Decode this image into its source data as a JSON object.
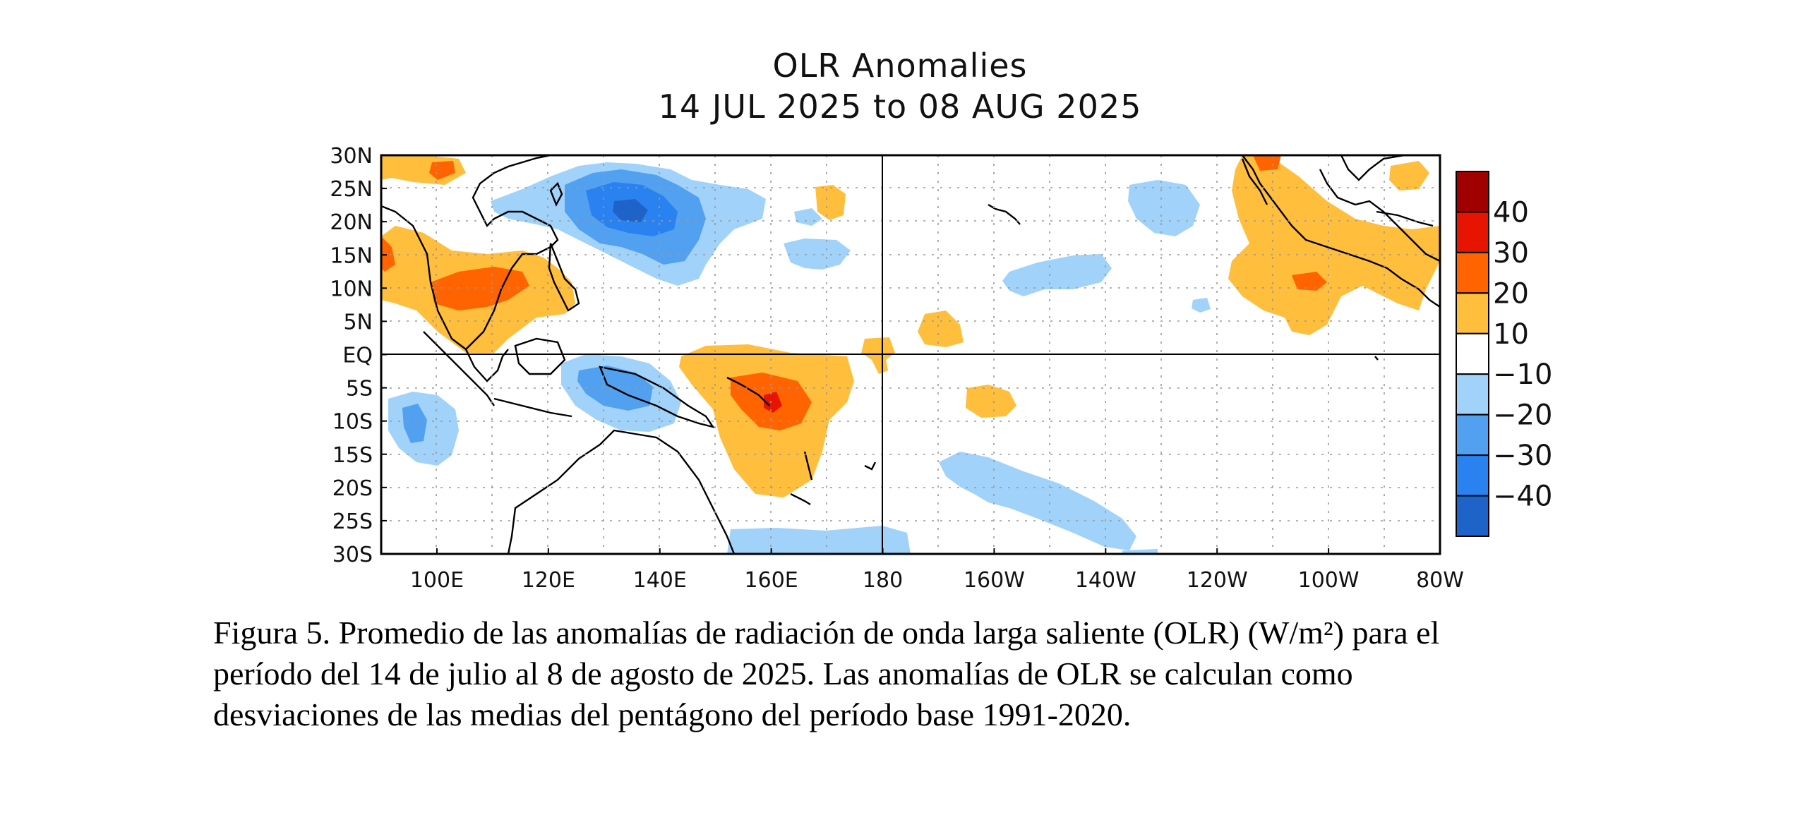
{
  "title": {
    "line1": "OLR Anomalies",
    "line2": "14 JUL 2025 to 08 AUG 2025"
  },
  "map": {
    "lon_range": [
      90,
      280
    ],
    "lat_range": [
      -30,
      30
    ],
    "lat_ticks": [
      "30N",
      "25N",
      "20N",
      "15N",
      "10N",
      "5N",
      "EQ",
      "5S",
      "10S",
      "15S",
      "20S",
      "25S",
      "30S"
    ],
    "lon_ticks": [
      "100E",
      "120E",
      "140E",
      "160E",
      "180",
      "160W",
      "140W",
      "120W",
      "100W",
      "80W"
    ],
    "colors": {
      "neg40": "#1e64c8",
      "neg30": "#2a82f0",
      "neg20": "#52a0f0",
      "neg10": "#a0d2fa",
      "pos10": "#ffbe3c",
      "pos20": "#ff6400",
      "pos30": "#e61400",
      "pos40": "#a00000"
    }
  },
  "colorbar": {
    "labels": [
      "40",
      "30",
      "20",
      "10",
      "−10",
      "−20",
      "−30",
      "−40"
    ],
    "bins": [
      "#a00000",
      "#e61400",
      "#ff6400",
      "#ffbe3c",
      "#ffffff",
      "#a0d2fa",
      "#52a0f0",
      "#2a82f0",
      "#1e64c8"
    ]
  },
  "caption": {
    "line1": "Figura 5. Promedio de las anomalías de radiación de onda larga saliente (OLR) (W/m²) para el",
    "line2": "período del 14 de julio al 8 de agosto de 2025. Las anomalías de OLR se calculan como",
    "line3": "desviaciones de las medias del pentágono del período base 1991-2020."
  }
}
